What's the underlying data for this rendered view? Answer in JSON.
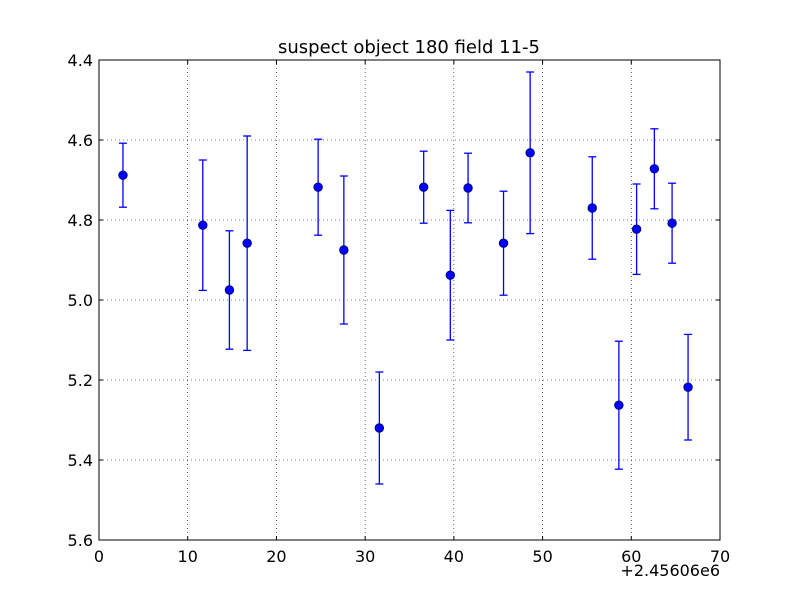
{
  "chart_data": {
    "type": "scatter",
    "title": "suspect object 180 field 11-5",
    "xlabel": "",
    "ylabel": "",
    "x_offset_label": "+2.45606e6",
    "xlim": [
      0,
      70
    ],
    "ylim": [
      5.6,
      4.4
    ],
    "y_inverted": true,
    "grid": true,
    "x_ticks": [
      0,
      10,
      20,
      30,
      40,
      50,
      60,
      70
    ],
    "x_tick_labels": [
      "0",
      "10",
      "20",
      "30",
      "40",
      "50",
      "60",
      "70"
    ],
    "y_ticks": [
      4.4,
      4.6,
      4.8,
      5.0,
      5.2,
      5.4,
      5.6
    ],
    "y_tick_labels": [
      "4.4",
      "4.6",
      "4.8",
      "5.0",
      "5.2",
      "5.4",
      "5.6"
    ],
    "marker_color": "#0000ff",
    "points": [
      {
        "x": 2.7,
        "y": 4.688,
        "err": 0.08
      },
      {
        "x": 11.7,
        "y": 4.813,
        "err": 0.163
      },
      {
        "x": 14.7,
        "y": 4.975,
        "err": 0.148
      },
      {
        "x": 16.7,
        "y": 4.858,
        "err": 0.268
      },
      {
        "x": 24.7,
        "y": 4.718,
        "err": 0.12
      },
      {
        "x": 27.6,
        "y": 4.875,
        "err": 0.185
      },
      {
        "x": 31.6,
        "y": 5.32,
        "err": 0.14
      },
      {
        "x": 36.6,
        "y": 4.718,
        "err": 0.09
      },
      {
        "x": 39.6,
        "y": 4.938,
        "err": 0.162
      },
      {
        "x": 41.6,
        "y": 4.72,
        "err": 0.087
      },
      {
        "x": 45.6,
        "y": 4.858,
        "err": 0.13
      },
      {
        "x": 48.6,
        "y": 4.632,
        "err": 0.202
      },
      {
        "x": 55.6,
        "y": 4.77,
        "err": 0.128
      },
      {
        "x": 58.6,
        "y": 5.263,
        "err": 0.16
      },
      {
        "x": 60.6,
        "y": 4.823,
        "err": 0.113
      },
      {
        "x": 62.6,
        "y": 4.672,
        "err": 0.1
      },
      {
        "x": 64.6,
        "y": 4.808,
        "err": 0.1
      },
      {
        "x": 66.4,
        "y": 5.218,
        "err": 0.132
      }
    ]
  }
}
